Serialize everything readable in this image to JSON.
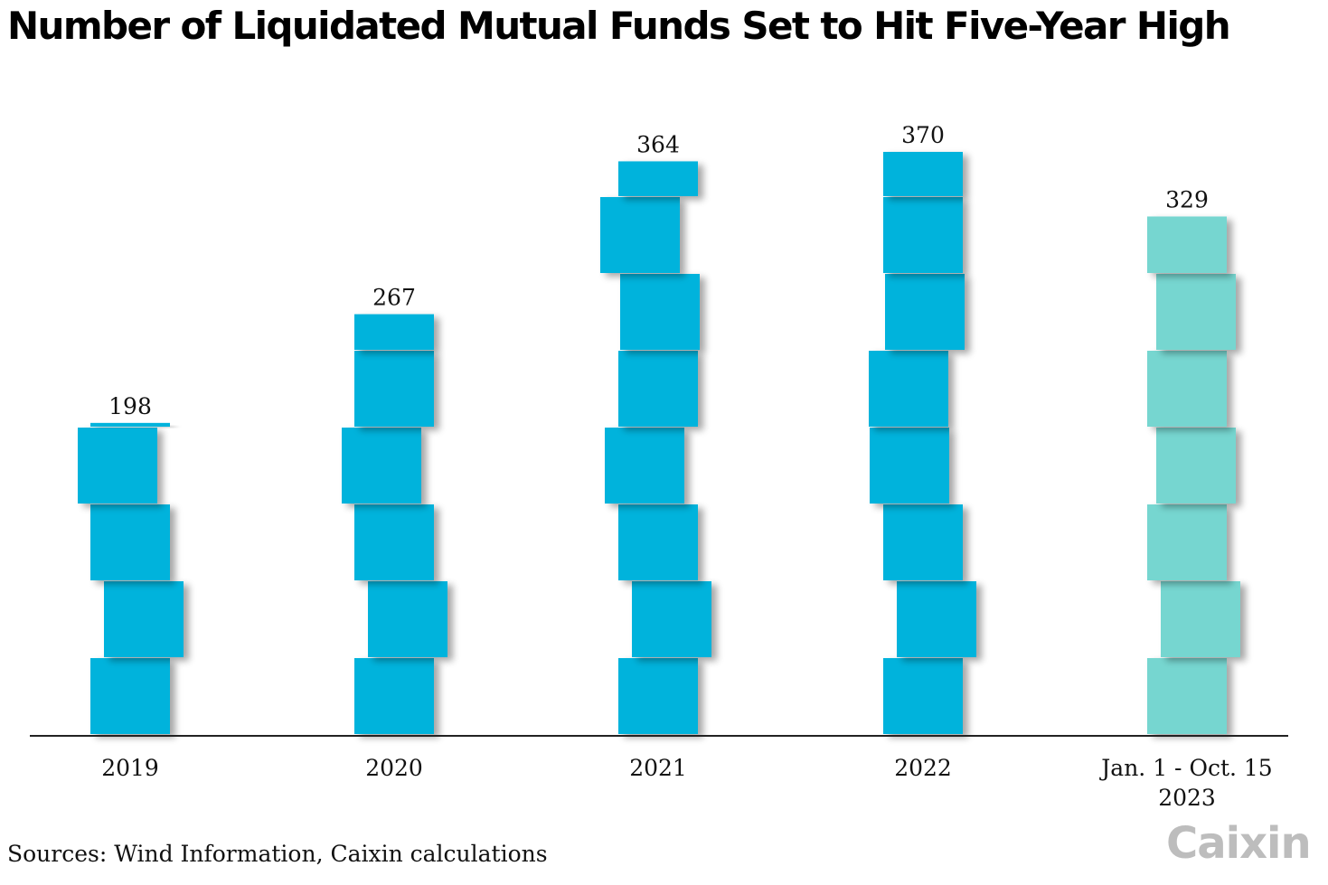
{
  "title": "Number of Liquidated Mutual Funds Set to Hit Five-Year High",
  "source": "Sources: Wind Information, Caixin calculations",
  "logo": "Caixin",
  "colors": {
    "bar": "#00b3dc",
    "bar_highlight": "#76d6d0",
    "axis": "#222222",
    "label": "#111111"
  },
  "chart_data": {
    "type": "bar",
    "title": "Number of Liquidated Mutual Funds Set to Hit Five-Year High",
    "categories": [
      "2019",
      "2020",
      "2021",
      "2022",
      "Jan. 1 - Oct. 15\n2023"
    ],
    "values": [
      198,
      267,
      364,
      370,
      329
    ],
    "highlight": [
      false,
      false,
      false,
      false,
      true
    ],
    "ylim": [
      0,
      370
    ],
    "grid": false,
    "legend": "none",
    "style": "stacked-blocks"
  }
}
